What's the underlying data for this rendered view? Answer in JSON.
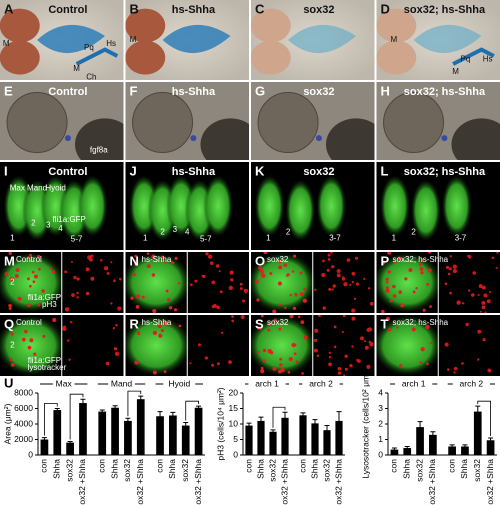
{
  "figure_label": "U",
  "panels": [
    {
      "letter": "A",
      "title": "Control",
      "notes": [
        "M",
        "M",
        "Pq",
        "Hs",
        "Ch"
      ]
    },
    {
      "letter": "B",
      "title": "hs-Shha",
      "notes": [
        "M"
      ]
    },
    {
      "letter": "C",
      "title": "sox32",
      "notes": []
    },
    {
      "letter": "D",
      "title": "sox32; hs-Shha",
      "notes": [
        "M",
        "Pq",
        "Hs",
        "M"
      ]
    },
    {
      "letter": "E",
      "title": "Control",
      "notes": [
        "fgf8a"
      ]
    },
    {
      "letter": "F",
      "title": "hs-Shha",
      "notes": []
    },
    {
      "letter": "G",
      "title": "sox32",
      "notes": []
    },
    {
      "letter": "H",
      "title": "sox32; hs-Shha",
      "notes": []
    },
    {
      "letter": "I",
      "title": "Control",
      "notes": [
        "Max",
        "Mand",
        "Hyoid",
        "1",
        "2",
        "3",
        "4",
        "5-7",
        "fli1a:GFP"
      ]
    },
    {
      "letter": "J",
      "title": "hs-Shha",
      "notes": [
        "1",
        "2",
        "3",
        "4",
        "5-7"
      ]
    },
    {
      "letter": "K",
      "title": "sox32",
      "notes": [
        "1",
        "2",
        "3-7"
      ]
    },
    {
      "letter": "L",
      "title": "sox32; hs-Shha",
      "notes": [
        "1",
        "2",
        "3-7"
      ]
    },
    {
      "letter": "M",
      "title": "Control",
      "notes": [
        "2",
        "fli1a:GFP",
        "pH3"
      ]
    },
    {
      "letter": "N",
      "title": "hs-Shha",
      "notes": []
    },
    {
      "letter": "O",
      "title": "sox32",
      "notes": []
    },
    {
      "letter": "P",
      "title": "sox32; hs-Shha",
      "notes": []
    },
    {
      "letter": "Q",
      "title": "Control",
      "notes": [
        "2",
        "fli1a:GFP",
        "lysotracker"
      ]
    },
    {
      "letter": "R",
      "title": "hs-Shha",
      "notes": []
    },
    {
      "letter": "S",
      "title": "sox32",
      "notes": []
    },
    {
      "letter": "T",
      "title": "sox32; hs-Shha",
      "notes": []
    }
  ],
  "chart_data": [
    {
      "type": "bar",
      "ylabel": "Area (μm²)",
      "color": "#000000",
      "ylim": [
        0,
        8000
      ],
      "yticks": [
        0,
        2000,
        4000,
        6000,
        8000
      ],
      "groups": [
        {
          "name": "Max",
          "categories": [
            "con",
            "Shha",
            "sox32",
            "sox32 +Shha"
          ],
          "values": [
            2000,
            5800,
            1600,
            6700
          ],
          "errors": [
            250,
            200,
            150,
            500
          ]
        },
        {
          "name": "Mand",
          "categories": [
            "con",
            "Shha",
            "sox32",
            "sox32 +Shha"
          ],
          "values": [
            5600,
            6100,
            4400,
            7200
          ],
          "errors": [
            200,
            250,
            350,
            400
          ]
        },
        {
          "name": "Hyoid",
          "categories": [
            "con",
            "Shha",
            "sox32",
            "sox32 +Shha"
          ],
          "values": [
            5000,
            5100,
            3800,
            6100
          ],
          "errors": [
            600,
            400,
            400,
            200
          ]
        }
      ]
    },
    {
      "type": "bar",
      "ylabel": "pH3 (cells/10⁴ μm²)",
      "color": "#000000",
      "ylim": [
        0,
        20
      ],
      "yticks": [
        0,
        5,
        10,
        15,
        20
      ],
      "groups": [
        {
          "name": "arch 1",
          "categories": [
            "con",
            "Shha",
            "sox32",
            "sox32 +Shha"
          ],
          "values": [
            9.5,
            11,
            7.5,
            12
          ],
          "errors": [
            0.8,
            1.2,
            0.6,
            1.8
          ]
        },
        {
          "name": "arch 2",
          "categories": [
            "con",
            "Shha",
            "sox32",
            "sox32 +Shha"
          ],
          "values": [
            12.8,
            10.2,
            8,
            11
          ],
          "errors": [
            0.8,
            1.2,
            1.5,
            3
          ]
        }
      ]
    },
    {
      "type": "bar",
      "ylabel": "Lysosotracker (cells/10² μm²)",
      "color": "#000000",
      "ylim": [
        0,
        4
      ],
      "yticks": [
        0,
        1,
        2,
        3,
        4
      ],
      "groups": [
        {
          "name": "arch 1",
          "categories": [
            "con",
            "Shha",
            "sox32",
            "sox32 +Shha"
          ],
          "values": [
            0.35,
            0.45,
            1.8,
            1.3
          ],
          "errors": [
            0.1,
            0.1,
            0.35,
            0.2
          ]
        },
        {
          "name": "arch 2",
          "categories": [
            "con",
            "Shha",
            "sox32",
            "sox32 +Shha"
          ],
          "values": [
            0.55,
            0.55,
            2.8,
            0.95
          ],
          "errors": [
            0.1,
            0.1,
            0.35,
            0.15
          ]
        }
      ]
    }
  ]
}
